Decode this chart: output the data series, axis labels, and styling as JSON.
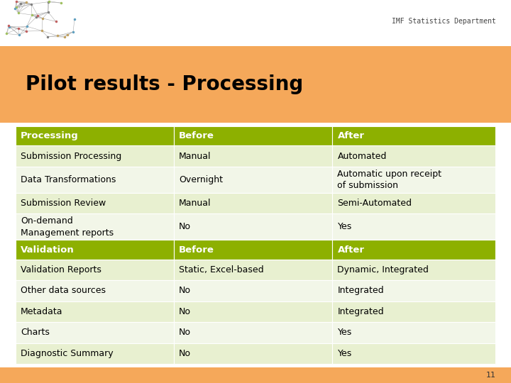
{
  "title": "Pilot results - Processing",
  "slide_bg": "#ffffff",
  "top_bar_bg": "#f5a85a",
  "bottom_bar_bg": "#f5a85a",
  "table_bg_light": "#e8f0d0",
  "table_bg_alt": "#f2f6e8",
  "table_bg_dark": "#8db000",
  "header_text_color": "#ffffff",
  "body_text_color": "#000000",
  "title_color": "#000000",
  "watermark_text": "IMF Statistics Department",
  "page_number": "11",
  "section1_header": [
    "Processing",
    "Before",
    "After"
  ],
  "section1_rows": [
    [
      "Submission Processing",
      "Manual",
      "Automated"
    ],
    [
      "Data Transformations",
      "Overnight",
      "Automatic upon receipt\nof submission"
    ],
    [
      "Submission Review",
      "Manual",
      "Semi-Automated"
    ],
    [
      "On-demand\nManagement reports",
      "No",
      "Yes"
    ]
  ],
  "section2_header": [
    "Validation",
    "Before",
    "After"
  ],
  "section2_rows": [
    [
      "Validation Reports",
      "Static, Excel-based",
      "Dynamic, Integrated"
    ],
    [
      "Other data sources",
      "No",
      "Integrated"
    ],
    [
      "Metadata",
      "No",
      "Integrated"
    ],
    [
      "Charts",
      "No",
      "Yes"
    ],
    [
      "Diagnostic Summary",
      "No",
      "Yes"
    ]
  ],
  "col_props": [
    0.33,
    0.33,
    0.34
  ],
  "font_size_title": 20,
  "font_size_header": 9.5,
  "font_size_body": 9,
  "font_size_watermark": 7
}
